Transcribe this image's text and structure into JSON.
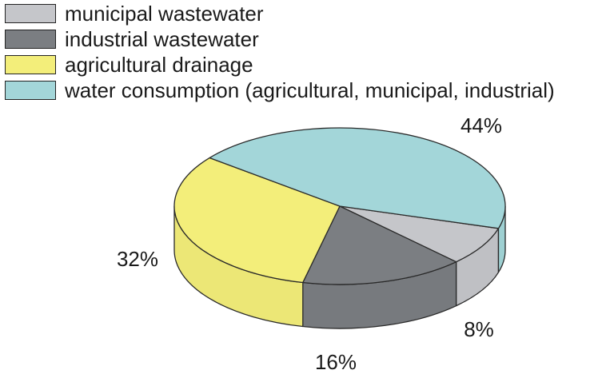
{
  "chart_data": {
    "type": "pie",
    "style": "3d",
    "legend_position": "top-left",
    "slices": [
      {
        "label": "municipal wastewater",
        "value": 8,
        "value_label": "8%",
        "color": "#c5c6ca"
      },
      {
        "label": "industrial wastewater",
        "value": 16,
        "value_label": "16%",
        "color": "#7b7e82"
      },
      {
        "label": "agricultural drainage",
        "value": 32,
        "value_label": "32%",
        "color": "#f3ee7a"
      },
      {
        "label": "water consumption (agricultural, municipal, industrial)",
        "value": 44,
        "value_label": "44%",
        "color": "#a3d6d9"
      }
    ]
  }
}
